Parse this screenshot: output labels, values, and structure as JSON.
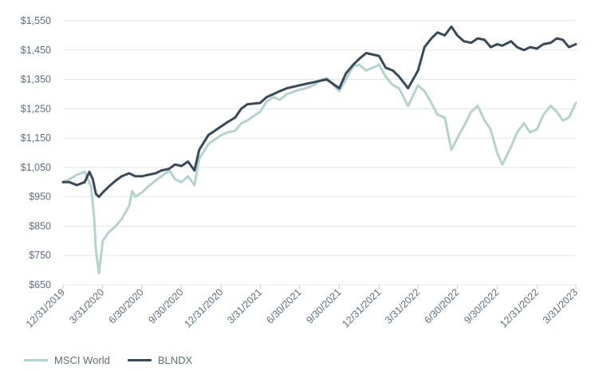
{
  "chart_data": {
    "type": "line",
    "title": "",
    "xlabel": "",
    "ylabel": "",
    "ylim": [
      650,
      1550
    ],
    "y_ticks": [
      650,
      750,
      850,
      950,
      1050,
      1150,
      1250,
      1350,
      1450,
      1550
    ],
    "y_tick_labels": [
      "$650",
      "$750",
      "$850",
      "$950",
      "$1,050",
      "$1,150",
      "$1,250",
      "$1,350",
      "$1,450",
      "$1,550"
    ],
    "x_ticks": [
      "2019-12-31",
      "2020-03-31",
      "2020-06-30",
      "2020-09-30",
      "2020-12-31",
      "2021-03-31",
      "2021-06-30",
      "2021-09-30",
      "2021-12-31",
      "2022-03-31",
      "2022-06-30",
      "2022-09-30",
      "2022-12-31",
      "2023-03-31"
    ],
    "x_tick_labels": [
      "12/31/2019",
      "3/31/2020",
      "6/30/2020",
      "9/30/2020",
      "12/31/2020",
      "3/31/2021",
      "6/30/2021",
      "9/30/2021",
      "12/31/2021",
      "3/31/2022",
      "6/30/2022",
      "9/30/2022",
      "12/31/2022",
      "3/31/2023"
    ],
    "grid": "horizontal",
    "legend_position": "bottom-left",
    "colors": {
      "msci": "#b3d4cc",
      "blndx": "#37495c",
      "grid": "#e3e6e9",
      "axis_text": "#5c6e80"
    },
    "series": [
      {
        "name": "MSCI World",
        "x": [
          "2019-12-31",
          "2020-01-15",
          "2020-02-01",
          "2020-02-19",
          "2020-03-05",
          "2020-03-12",
          "2020-03-16",
          "2020-03-23",
          "2020-04-01",
          "2020-04-15",
          "2020-05-01",
          "2020-05-15",
          "2020-06-01",
          "2020-06-08",
          "2020-06-15",
          "2020-07-01",
          "2020-07-15",
          "2020-08-01",
          "2020-08-15",
          "2020-09-02",
          "2020-09-15",
          "2020-09-30",
          "2020-10-15",
          "2020-10-30",
          "2020-11-10",
          "2020-12-01",
          "2020-12-31",
          "2021-01-15",
          "2021-02-01",
          "2021-02-15",
          "2021-03-01",
          "2021-03-31",
          "2021-04-15",
          "2021-05-01",
          "2021-05-15",
          "2021-06-01",
          "2021-06-30",
          "2021-07-15",
          "2021-08-01",
          "2021-08-15",
          "2021-09-01",
          "2021-09-30",
          "2021-10-15",
          "2021-11-01",
          "2021-11-15",
          "2021-12-01",
          "2021-12-31",
          "2022-01-15",
          "2022-02-01",
          "2022-02-15",
          "2022-03-08",
          "2022-03-31",
          "2022-04-15",
          "2022-05-01",
          "2022-05-15",
          "2022-06-01",
          "2022-06-16",
          "2022-06-30",
          "2022-07-15",
          "2022-08-01",
          "2022-08-16",
          "2022-09-01",
          "2022-09-15",
          "2022-09-30",
          "2022-10-12",
          "2022-11-01",
          "2022-11-15",
          "2022-12-01",
          "2022-12-15",
          "2022-12-31",
          "2023-01-15",
          "2023-02-01",
          "2023-02-15",
          "2023-03-01",
          "2023-03-15",
          "2023-03-31"
        ],
        "values": [
          1000,
          1010,
          1025,
          1035,
          985,
          880,
          770,
          690,
          800,
          830,
          850,
          875,
          920,
          970,
          950,
          965,
          985,
          1005,
          1020,
          1040,
          1010,
          1000,
          1020,
          990,
          1080,
          1130,
          1160,
          1170,
          1175,
          1200,
          1210,
          1240,
          1275,
          1290,
          1280,
          1300,
          1315,
          1320,
          1330,
          1345,
          1355,
          1310,
          1350,
          1395,
          1400,
          1380,
          1400,
          1360,
          1330,
          1320,
          1260,
          1330,
          1310,
          1270,
          1230,
          1220,
          1110,
          1150,
          1190,
          1240,
          1260,
          1210,
          1180,
          1100,
          1060,
          1120,
          1170,
          1200,
          1170,
          1180,
          1230,
          1260,
          1240,
          1210,
          1220,
          1270
        ]
      },
      {
        "name": "BLNDX",
        "x": [
          "2019-12-31",
          "2020-01-15",
          "2020-02-01",
          "2020-02-19",
          "2020-03-01",
          "2020-03-09",
          "2020-03-16",
          "2020-03-23",
          "2020-04-01",
          "2020-04-15",
          "2020-05-01",
          "2020-05-15",
          "2020-06-01",
          "2020-06-15",
          "2020-07-01",
          "2020-07-15",
          "2020-08-01",
          "2020-08-15",
          "2020-09-01",
          "2020-09-15",
          "2020-09-30",
          "2020-10-15",
          "2020-10-30",
          "2020-11-10",
          "2020-12-01",
          "2020-12-31",
          "2021-01-15",
          "2021-02-01",
          "2021-02-15",
          "2021-03-01",
          "2021-03-31",
          "2021-04-15",
          "2021-05-01",
          "2021-05-15",
          "2021-06-01",
          "2021-06-30",
          "2021-07-15",
          "2021-08-01",
          "2021-08-15",
          "2021-09-01",
          "2021-09-30",
          "2021-10-15",
          "2021-11-01",
          "2021-11-15",
          "2021-12-01",
          "2021-12-31",
          "2022-01-15",
          "2022-02-01",
          "2022-02-15",
          "2022-03-08",
          "2022-03-31",
          "2022-04-15",
          "2022-05-01",
          "2022-05-15",
          "2022-06-01",
          "2022-06-16",
          "2022-06-30",
          "2022-07-15",
          "2022-08-01",
          "2022-08-16",
          "2022-09-01",
          "2022-09-15",
          "2022-09-30",
          "2022-10-12",
          "2022-11-01",
          "2022-11-15",
          "2022-12-01",
          "2022-12-15",
          "2022-12-31",
          "2023-01-15",
          "2023-02-01",
          "2023-02-15",
          "2023-03-01",
          "2023-03-15",
          "2023-03-31"
        ],
        "values": [
          1000,
          1000,
          990,
          1000,
          1035,
          1010,
          960,
          950,
          965,
          985,
          1005,
          1020,
          1030,
          1020,
          1020,
          1025,
          1030,
          1040,
          1045,
          1060,
          1055,
          1070,
          1040,
          1110,
          1160,
          1190,
          1205,
          1220,
          1250,
          1265,
          1270,
          1290,
          1300,
          1310,
          1320,
          1330,
          1335,
          1340,
          1345,
          1350,
          1320,
          1370,
          1400,
          1420,
          1440,
          1430,
          1390,
          1380,
          1360,
          1320,
          1380,
          1460,
          1490,
          1510,
          1500,
          1530,
          1500,
          1480,
          1475,
          1490,
          1485,
          1460,
          1470,
          1465,
          1480,
          1460,
          1450,
          1460,
          1455,
          1470,
          1475,
          1490,
          1485,
          1460,
          1470
        ]
      }
    ]
  }
}
